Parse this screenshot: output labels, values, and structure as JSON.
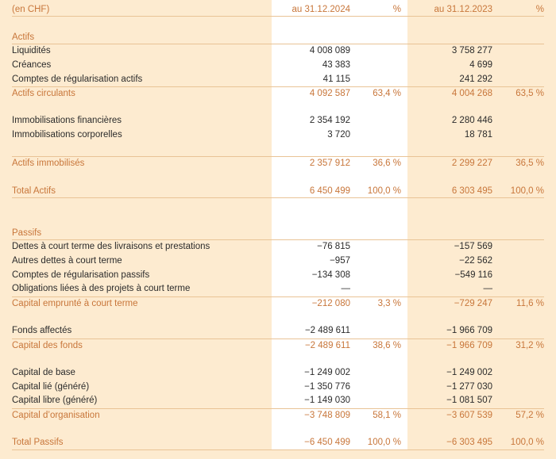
{
  "header": {
    "unit": "(en CHF)",
    "col_2024": "au 31.12.2024",
    "pct_2024": "%",
    "col_2023": "au 31.12.2023",
    "pct_2023": "%"
  },
  "colors": {
    "background": "#fdebd0",
    "accent": "#c8763a",
    "rule": "#e9c396",
    "highlight_column": "#ffffff"
  },
  "rows": [
    {
      "kind": "heading",
      "label": "Actifs"
    },
    {
      "kind": "item",
      "label": "Liquidités",
      "v2024": "4 008 089",
      "v2023": "3 758 277"
    },
    {
      "kind": "item",
      "label": "Créances",
      "v2024": "43 383",
      "v2023": "4 699"
    },
    {
      "kind": "item",
      "label": "Comptes de régularisation actifs",
      "v2024": "41 115",
      "v2023": "241 292"
    },
    {
      "kind": "subtotal",
      "label": "Actifs circulants",
      "v2024": "4 092 587",
      "p2024": "63,4 %",
      "v2023": "4 004 268",
      "p2023": "63,5 %"
    },
    {
      "kind": "item",
      "label": "Immobilisations financières",
      "v2024": "2 354 192",
      "v2023": "2 280 446"
    },
    {
      "kind": "item",
      "label": "Immobilisations corporelles",
      "v2024": "3 720",
      "v2023": "18 781"
    },
    {
      "kind": "subtotal",
      "label": "Actifs immobilisés",
      "v2024": "2 357 912",
      "p2024": "36,6 %",
      "v2023": "2 299 227",
      "p2023": "36,5 %"
    },
    {
      "kind": "total",
      "label": "Total Actifs",
      "v2024": "6 450 499",
      "p2024": "100,0 %",
      "v2023": "6 303 495",
      "p2023": "100,0 %"
    },
    {
      "kind": "heading",
      "label": "Passifs"
    },
    {
      "kind": "item",
      "label": "Dettes à court terme des livraisons et prestations",
      "v2024": "−76 815",
      "v2023": "−157 569"
    },
    {
      "kind": "item",
      "label": "Autres dettes à court terme",
      "v2024": "−957",
      "v2023": "−22 562"
    },
    {
      "kind": "item",
      "label": "Comptes de régularisation passifs",
      "v2024": "−134 308",
      "v2023": "−549 116"
    },
    {
      "kind": "item",
      "label": "Obligations liées à des projets à court terme",
      "v2024": "—",
      "v2023": "—"
    },
    {
      "kind": "subtotal",
      "label": "Capital emprunté à court terme",
      "v2024": "−212 080",
      "p2024": "3,3 %",
      "v2023": "−729 247",
      "p2023": "11,6 %"
    },
    {
      "kind": "item",
      "label": "Fonds affectés",
      "v2024": "−2 489 611",
      "v2023": "−1 966 709"
    },
    {
      "kind": "subtotal",
      "label": "Capital des fonds",
      "v2024": "−2 489 611",
      "p2024": "38,6 %",
      "v2023": "−1 966 709",
      "p2023": "31,2 %"
    },
    {
      "kind": "item",
      "label": "Capital de base",
      "v2024": "−1 249 002",
      "v2023": "−1 249 002"
    },
    {
      "kind": "item",
      "label": "Capital lié (généré)",
      "v2024": "−1 350 776",
      "v2023": "−1 277 030"
    },
    {
      "kind": "item",
      "label": "Capital libre (généré)",
      "v2024": "−1 149 030",
      "v2023": "−1 081 507"
    },
    {
      "kind": "subtotal",
      "label": "Capital d’organisation",
      "v2024": "−3 748 809",
      "p2024": "58,1 %",
      "v2023": "−3 607 539",
      "p2023": "57,2 %"
    },
    {
      "kind": "total",
      "label": "Total Passifs",
      "v2024": "−6 450 499",
      "p2024": "100,0 %",
      "v2023": "−6 303 495",
      "p2023": "100,0 %"
    }
  ]
}
